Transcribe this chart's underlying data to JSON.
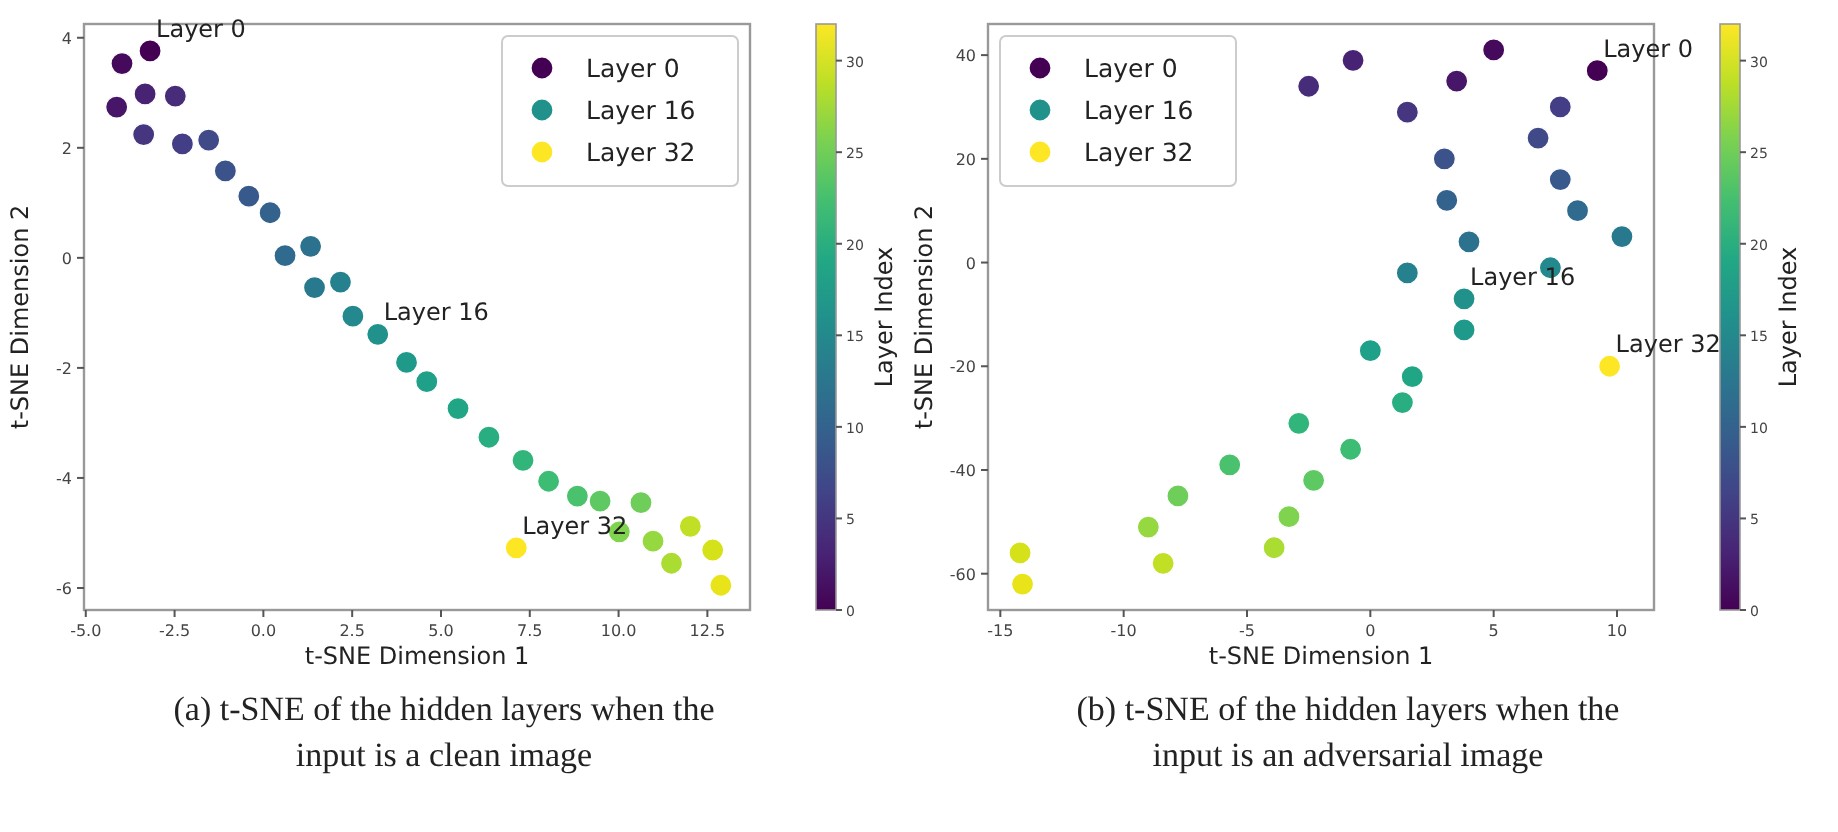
{
  "chart_data": [
    {
      "type": "scatter",
      "xlabel": "t-SNE Dimension 1",
      "ylabel": "t-SNE Dimension 2",
      "clabel": "Layer Index",
      "clim": [
        0,
        32
      ],
      "cticks": [
        0,
        5,
        10,
        15,
        20,
        25,
        30
      ],
      "legend": "top right",
      "marker": "circle",
      "xlim": [
        -5.05,
        13.7
      ],
      "ylim": [
        -6.4,
        4.25
      ],
      "xticks": [
        {
          "value": -5,
          "label": "-5.0"
        },
        {
          "value": -2.5,
          "label": "-2.5"
        },
        {
          "value": 0,
          "label": "0.0"
        },
        {
          "value": 2.5,
          "label": "2.5"
        },
        {
          "value": 5,
          "label": "5.0"
        },
        {
          "value": 7.5,
          "label": "7.5"
        },
        {
          "value": 10,
          "label": "10.0"
        },
        {
          "value": 12.5,
          "label": "12.5"
        }
      ],
      "yticks": [
        -6,
        -4,
        -2,
        0,
        2,
        4
      ],
      "series": [
        {
          "x": [
            -3.98,
            -4.13,
            -3.33,
            -2.48,
            -3.37,
            -2.28,
            -1.54,
            -1.07,
            -0.41,
            0.19,
            0.61,
            1.33,
            1.44,
            2.17,
            2.52,
            4.03,
            4.6,
            5.48,
            6.35,
            7.31,
            8.03,
            8.84,
            9.48,
            10.63,
            10.02,
            10.97,
            11.49,
            12.02,
            12.65,
            12.88
          ],
          "values": [
            3.53,
            2.74,
            2.98,
            2.94,
            2.24,
            2.07,
            2.14,
            1.58,
            1.12,
            0.82,
            0.04,
            0.21,
            -0.54,
            -0.44,
            -1.06,
            -1.9,
            -2.25,
            -2.74,
            -3.26,
            -3.68,
            -4.06,
            -4.33,
            -4.42,
            -4.45,
            -4.98,
            -5.15,
            -5.55,
            -4.88,
            -5.31,
            -5.95
          ],
          "colors": [
            "#450a5c",
            "#471669",
            "#482273",
            "#472c7a",
            "#46357f",
            "#433e85",
            "#404a88",
            "#3b528b",
            "#38598c",
            "#33628d",
            "#306a8e",
            "#2c718e",
            "#29798e",
            "#26818e",
            "#23898e",
            "#1f998a",
            "#1fa088",
            "#21a685",
            "#28ae80",
            "#31b57b",
            "#3dbc74",
            "#4ac16d",
            "#5ec962",
            "#6fcd59",
            "#80d34e",
            "#95d840",
            "#aadc32",
            "#c0df25",
            "#d5e21a",
            "#e8e419"
          ]
        },
        {
          "name": "Layer 0",
          "color": "#440154",
          "x": [
            -3.19
          ],
          "values": [
            3.76
          ]
        },
        {
          "name": "Layer 16",
          "color": "#21918c",
          "x": [
            3.22
          ],
          "values": [
            -1.39
          ]
        },
        {
          "name": "Layer 32",
          "color": "#fde725",
          "x": [
            7.12
          ],
          "values": [
            -5.27
          ]
        }
      ],
      "annotations": [
        {
          "text": "Layer 0",
          "x": -3.19,
          "y": 3.76
        },
        {
          "text": "Layer 16",
          "x": 3.22,
          "y": -1.39
        },
        {
          "text": "Layer 32",
          "x": 7.12,
          "y": -5.27
        },
        "(a) t-SNE of the hidden layers when the input is a clean image"
      ]
    },
    {
      "type": "scatter",
      "xlabel": "t-SNE Dimension 1",
      "ylabel": "t-SNE Dimension 2",
      "clabel": "Layer Index",
      "clim": [
        0,
        32
      ],
      "cticks": [
        0,
        5,
        10,
        15,
        20,
        25,
        30
      ],
      "legend": "top left",
      "marker": "circle",
      "xlim": [
        -15.5,
        11.5
      ],
      "ylim": [
        -67,
        46
      ],
      "xticks": [
        -15,
        -10,
        -5,
        0,
        5,
        10
      ],
      "yticks": [
        -60,
        -40,
        -20,
        0,
        20,
        40
      ],
      "series": [
        {
          "x": [
            5.0,
            3.5,
            -0.7,
            -2.5,
            1.5,
            7.7,
            6.8,
            3.0,
            7.7,
            3.1,
            8.4,
            4.0,
            10.2,
            1.5,
            7.3,
            3.8,
            0.0,
            1.7,
            1.3,
            -2.9,
            -0.8,
            -5.7,
            -2.3,
            -7.8,
            -3.3,
            -9.0,
            -3.9,
            -8.4,
            -14.2,
            -14.1
          ],
          "values": [
            41,
            35,
            39,
            34,
            29,
            30,
            24,
            20,
            16,
            12,
            10,
            4,
            5,
            -2,
            -1,
            -13,
            -17,
            -22,
            -27,
            -31,
            -36,
            -39,
            -42,
            -45,
            -49,
            -51,
            -55,
            -58,
            -56,
            -62
          ],
          "colors": [
            "#450a5c",
            "#471669",
            "#482273",
            "#472c7a",
            "#46357f",
            "#433e85",
            "#404a88",
            "#3b528b",
            "#38598c",
            "#33628d",
            "#306a8e",
            "#2c718e",
            "#29798e",
            "#26818e",
            "#23898e",
            "#1f998a",
            "#1fa088",
            "#21a685",
            "#28ae80",
            "#31b57b",
            "#3dbc74",
            "#4ac16d",
            "#5ec962",
            "#6fcd59",
            "#80d34e",
            "#95d840",
            "#aadc32",
            "#c0df25",
            "#d5e21a",
            "#e8e419"
          ]
        },
        {
          "name": "Layer 0",
          "color": "#440154",
          "x": [
            9.2
          ],
          "values": [
            37
          ]
        },
        {
          "name": "Layer 16",
          "color": "#21918c",
          "x": [
            3.8
          ],
          "values": [
            -7
          ]
        },
        {
          "name": "Layer 32",
          "color": "#fde725",
          "x": [
            9.7
          ],
          "values": [
            -20
          ]
        }
      ],
      "annotations": [
        {
          "text": "Layer 0",
          "x": 9.2,
          "y": 37
        },
        {
          "text": "Layer 16",
          "x": 3.8,
          "y": -7
        },
        {
          "text": "Layer 32",
          "x": 9.7,
          "y": -20
        },
        "(b) t-SNE of the hidden layers when the input is an adversarial image"
      ]
    }
  ]
}
